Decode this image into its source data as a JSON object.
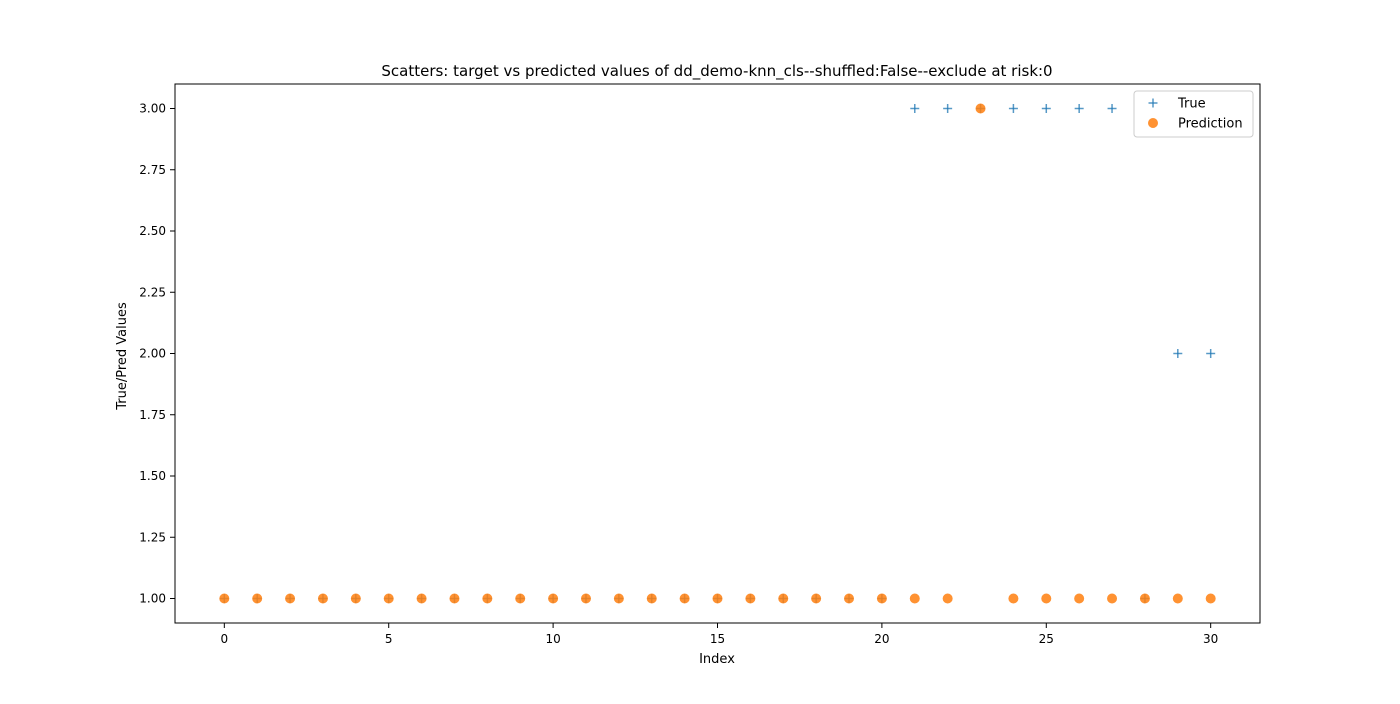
{
  "chart_data": {
    "type": "scatter",
    "title": "Scatters: target vs predicted values of dd_demo-knn_cls--shuffled:False--exclude at risk:0",
    "xlabel": "Index",
    "ylabel": "True/Pred Values",
    "xlim": [
      -1.5,
      31.5
    ],
    "ylim": [
      0.9,
      3.1
    ],
    "xticks": [
      0,
      5,
      10,
      15,
      20,
      25,
      30
    ],
    "xtick_labels": [
      "0",
      "5",
      "10",
      "15",
      "20",
      "25",
      "30"
    ],
    "yticks": [
      1.0,
      1.25,
      1.5,
      1.75,
      2.0,
      2.25,
      2.5,
      2.75,
      3.0
    ],
    "ytick_labels": [
      "1.00",
      "1.25",
      "1.50",
      "1.75",
      "2.00",
      "2.25",
      "2.50",
      "2.75",
      "3.00"
    ],
    "grid": false,
    "legend": {
      "placement": "top-right"
    },
    "x": [
      0,
      1,
      2,
      3,
      4,
      5,
      6,
      7,
      8,
      9,
      10,
      11,
      12,
      13,
      14,
      15,
      16,
      17,
      18,
      19,
      20,
      21,
      22,
      23,
      24,
      25,
      26,
      27,
      28,
      29,
      30
    ],
    "series": [
      {
        "name": "True",
        "marker": "plus",
        "color": "#1f77b4",
        "values": [
          1,
          1,
          1,
          1,
          1,
          1,
          1,
          1,
          1,
          1,
          1,
          1,
          1,
          1,
          1,
          1,
          1,
          1,
          1,
          1,
          1,
          3,
          3,
          3,
          3,
          3,
          3,
          3,
          1,
          2,
          2
        ]
      },
      {
        "name": "Prediction",
        "marker": "circle",
        "color": "#ff7f0e",
        "values": [
          1,
          1,
          1,
          1,
          1,
          1,
          1,
          1,
          1,
          1,
          1,
          1,
          1,
          1,
          1,
          1,
          1,
          1,
          1,
          1,
          1,
          1,
          1,
          3,
          1,
          1,
          1,
          1,
          1,
          1,
          1
        ]
      }
    ]
  }
}
